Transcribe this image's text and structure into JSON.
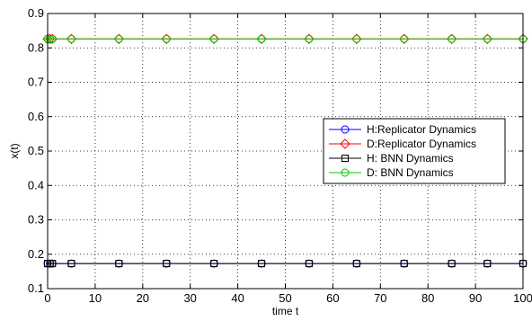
{
  "chart_data": {
    "type": "line",
    "title": "",
    "xlabel": "time t",
    "ylabel": "x(t)",
    "xlim": [
      0,
      100
    ],
    "ylim": [
      0.1,
      0.9
    ],
    "x_ticks": [
      0,
      10,
      20,
      30,
      40,
      50,
      60,
      70,
      80,
      90,
      100
    ],
    "x_tick_labels": [
      "0",
      "10",
      "20",
      "30",
      "40",
      "50",
      "60",
      "70",
      "80",
      "90",
      "100"
    ],
    "y_ticks": [
      0.1,
      0.2,
      0.3,
      0.4,
      0.5,
      0.6,
      0.7,
      0.8,
      0.9
    ],
    "y_tick_labels": [
      "0.1",
      "0.2",
      "0.3",
      "0.4",
      "0.5",
      "0.6",
      "0.7",
      "0.8",
      "0.9"
    ],
    "grid": true,
    "legend_position": "right",
    "series": [
      {
        "name": "H:Replicator Dynamics",
        "color": "#0000ff",
        "marker": "circle",
        "x": [
          0,
          0.5,
          1,
          5,
          15,
          25,
          35,
          45,
          55,
          65,
          75,
          85,
          92.5,
          100
        ],
        "y": [
          0.173,
          0.173,
          0.173,
          0.173,
          0.173,
          0.173,
          0.173,
          0.173,
          0.173,
          0.173,
          0.173,
          0.173,
          0.173,
          0.173
        ]
      },
      {
        "name": "D:Replicator Dynamics",
        "color": "#ff0000",
        "marker": "diamond",
        "x": [
          0,
          0.5,
          1,
          5,
          15,
          25,
          35,
          45,
          55,
          65,
          75,
          85,
          92.5,
          100
        ],
        "y": [
          0.826,
          0.826,
          0.826,
          0.826,
          0.826,
          0.826,
          0.826,
          0.826,
          0.826,
          0.826,
          0.826,
          0.826,
          0.826,
          0.826
        ]
      },
      {
        "name": "H: BNN Dynamics",
        "color": "#000000",
        "marker": "square",
        "x": [
          0,
          0.5,
          1,
          5,
          15,
          25,
          35,
          45,
          55,
          65,
          75,
          85,
          92.5,
          100
        ],
        "y": [
          0.173,
          0.173,
          0.173,
          0.173,
          0.173,
          0.173,
          0.173,
          0.173,
          0.173,
          0.173,
          0.173,
          0.173,
          0.173,
          0.173
        ]
      },
      {
        "name": "D: BNN Dynamics",
        "color": "#00cc00",
        "marker": "circle",
        "x": [
          0,
          0.5,
          1,
          5,
          15,
          25,
          35,
          45,
          55,
          65,
          75,
          85,
          92.5,
          100
        ],
        "y": [
          0.826,
          0.826,
          0.826,
          0.826,
          0.826,
          0.826,
          0.826,
          0.826,
          0.826,
          0.826,
          0.826,
          0.826,
          0.826,
          0.826
        ]
      }
    ]
  }
}
